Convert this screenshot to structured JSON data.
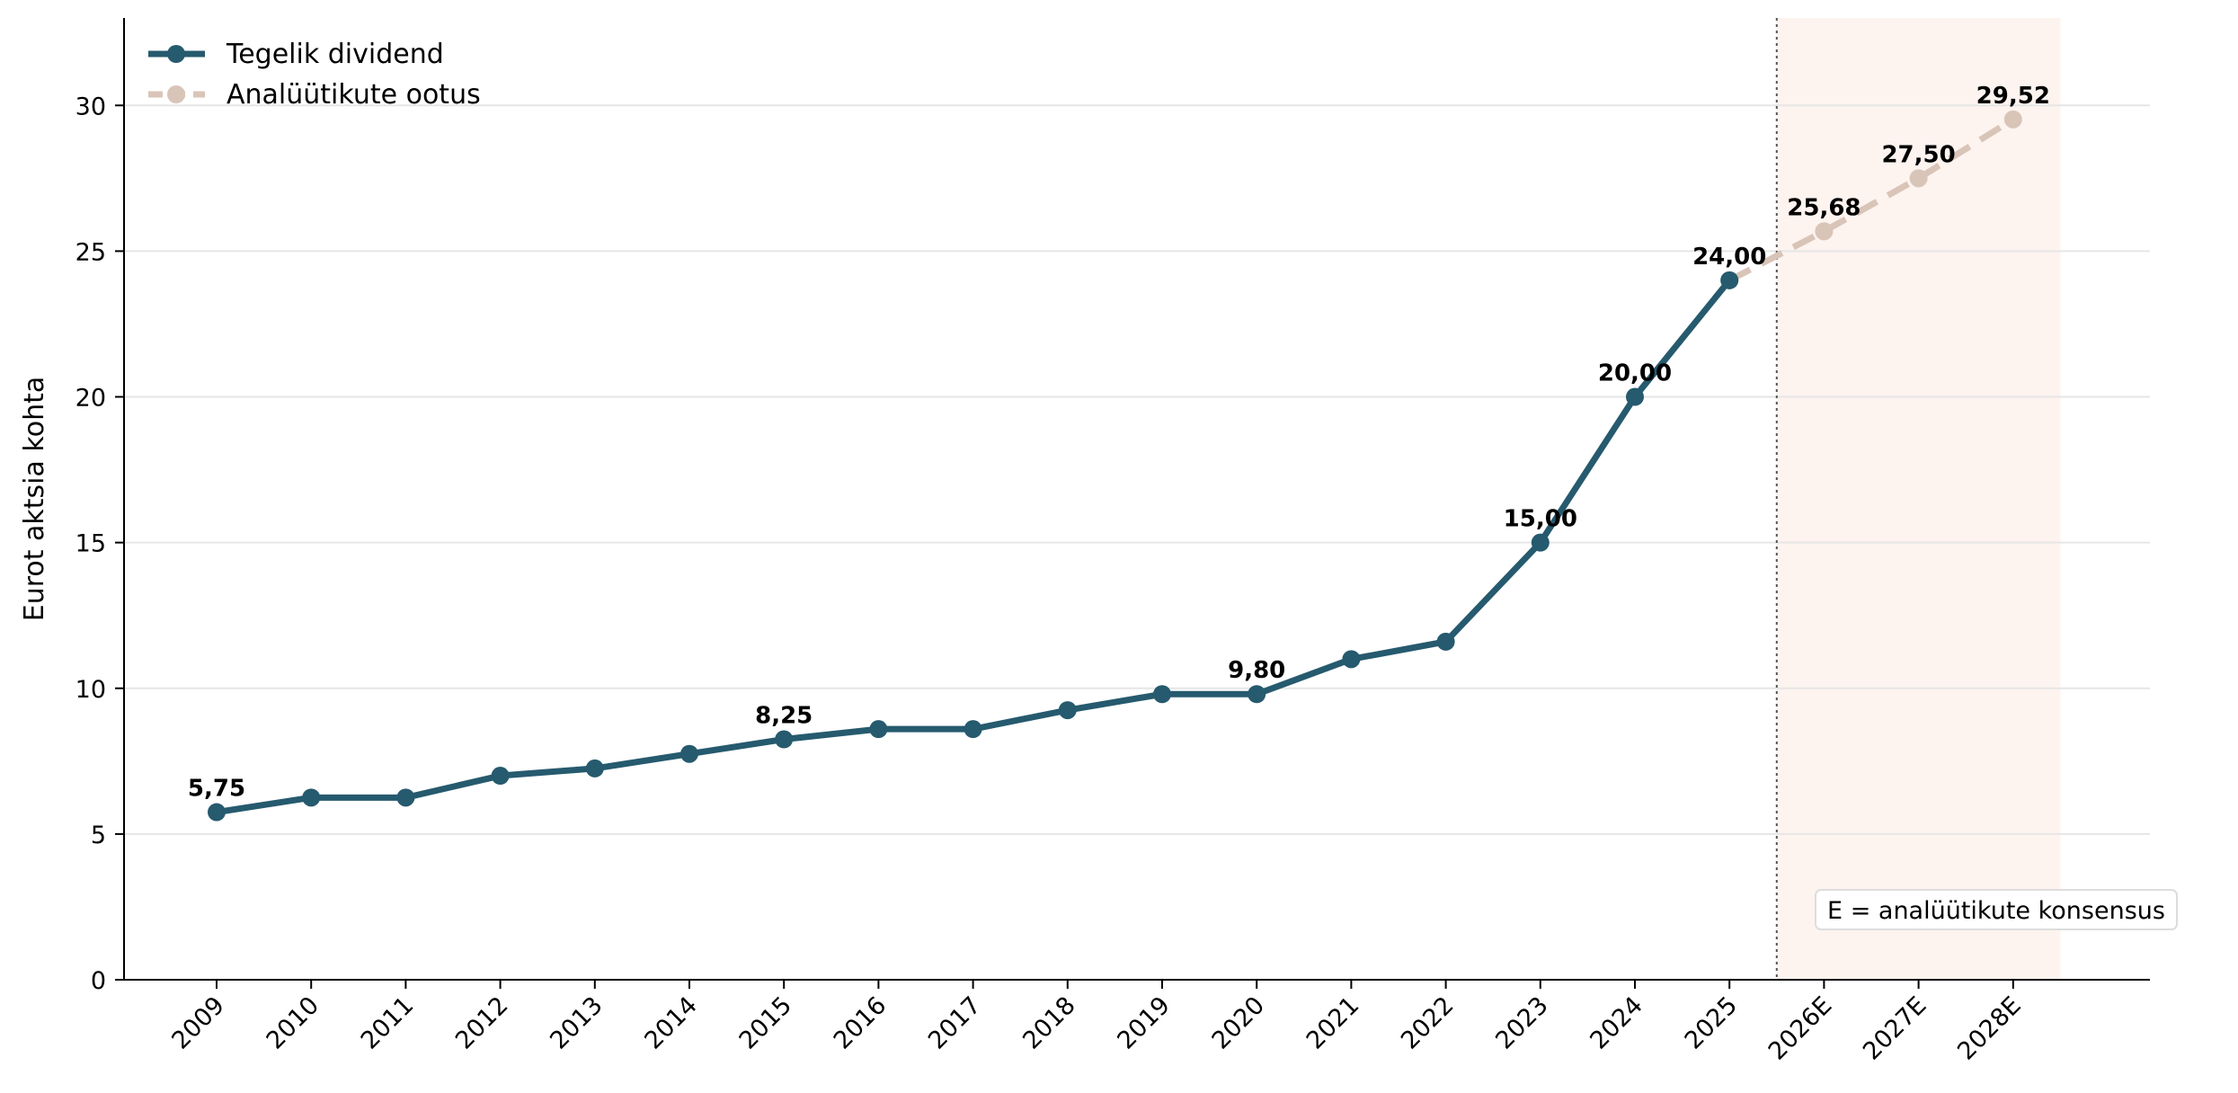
{
  "chart_data": {
    "type": "line",
    "categories": [
      "2009",
      "2010",
      "2011",
      "2012",
      "2013",
      "2014",
      "2015",
      "2016",
      "2017",
      "2018",
      "2019",
      "2020",
      "2021",
      "2022",
      "2023",
      "2024",
      "2025",
      "2026E",
      "2027E",
      "2028E"
    ],
    "series": [
      {
        "name": "Tegelik dividend",
        "style": "solid",
        "color": "#265a6e",
        "x": [
          "2009",
          "2010",
          "2011",
          "2012",
          "2013",
          "2014",
          "2015",
          "2016",
          "2017",
          "2018",
          "2019",
          "2020",
          "2021",
          "2022",
          "2023",
          "2024",
          "2025"
        ],
        "values": [
          5.75,
          6.25,
          6.25,
          7.0,
          7.25,
          7.75,
          8.25,
          8.6,
          8.6,
          9.25,
          9.8,
          9.8,
          11.0,
          11.6,
          15.0,
          20.0,
          24.0
        ]
      },
      {
        "name": "Analüütikute ootus",
        "style": "dashed",
        "color": "#d9c4b8",
        "x": [
          "2025",
          "2026E",
          "2027E",
          "2028E"
        ],
        "values": [
          24.0,
          25.68,
          27.5,
          29.52
        ]
      }
    ],
    "data_labels": [
      {
        "x": "2009",
        "y": 5.75,
        "text": "5,75"
      },
      {
        "x": "2015",
        "y": 8.25,
        "text": "8,25"
      },
      {
        "x": "2020",
        "y": 9.8,
        "text": "9,80"
      },
      {
        "x": "2023",
        "y": 15.0,
        "text": "15,00"
      },
      {
        "x": "2024",
        "y": 20.0,
        "text": "20,00"
      },
      {
        "x": "2025",
        "y": 24.0,
        "text": "24,00"
      },
      {
        "x": "2026E",
        "y": 25.68,
        "text": "25,68"
      },
      {
        "x": "2027E",
        "y": 27.5,
        "text": "27,50"
      },
      {
        "x": "2028E",
        "y": 29.52,
        "text": "29,52"
      }
    ],
    "title": "",
    "xlabel": "",
    "ylabel": "Eurot aktsia kohta",
    "ylim": [
      0,
      33
    ],
    "yticks": [
      0,
      5,
      10,
      15,
      20,
      25,
      30
    ],
    "grid": "horizontal",
    "legend_position": "top-left",
    "forecast_region": {
      "from": "2026E",
      "to": "2028E",
      "color": "#fdf3ef"
    },
    "annotation": "E = analüütikute konsensus"
  }
}
